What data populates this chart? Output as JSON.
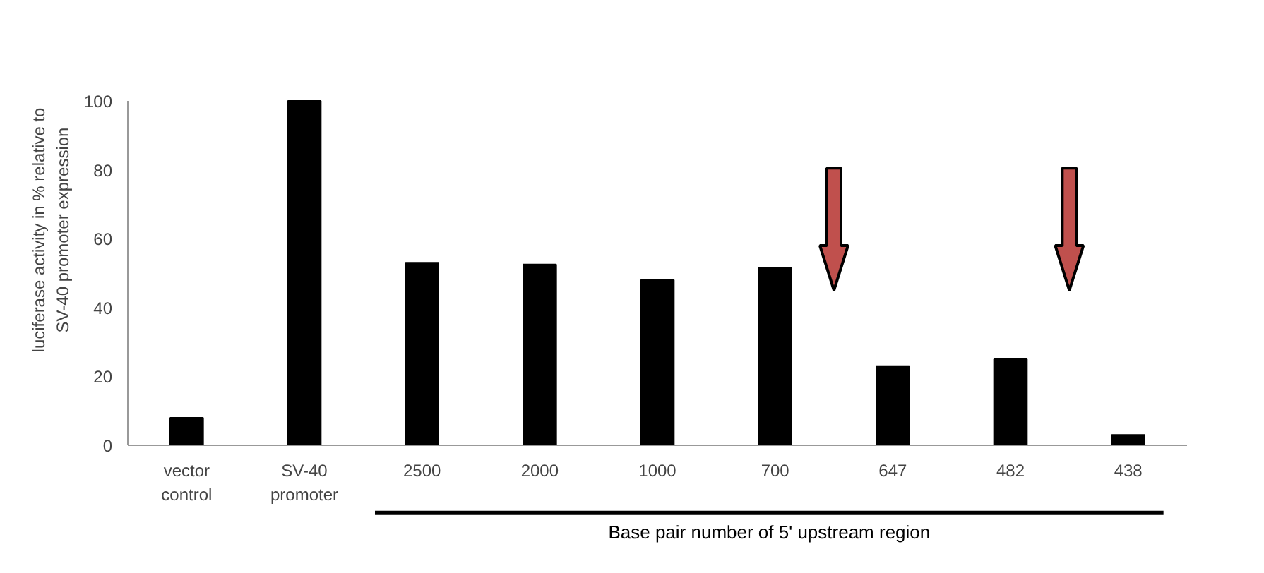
{
  "chart_data": {
    "type": "bar",
    "categories": [
      "vector\ncontrol",
      "SV-40\npromoter",
      "2500",
      "2000",
      "1000",
      "700",
      "647",
      "482",
      "438"
    ],
    "values": [
      8,
      100,
      53,
      52.5,
      48,
      51.5,
      23,
      25,
      3
    ],
    "color": "#000000",
    "xlabel": "Base pair number of 5' upstream region",
    "ylabel": "luciferase activity in % relative to\nSV-40 promoter expression",
    "ylim": [
      0,
      100
    ],
    "yticks": [
      0,
      20,
      40,
      60,
      80,
      100
    ],
    "grid": false
  }
}
